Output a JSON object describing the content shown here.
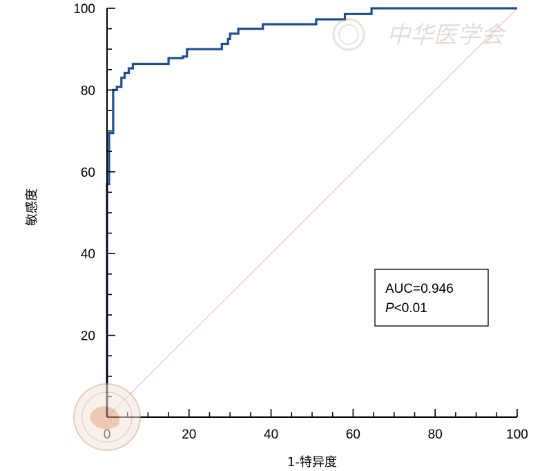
{
  "chart_data": {
    "type": "line",
    "xlabel": "1-特异度",
    "ylabel": "敏感度",
    "xlim": [
      0,
      100
    ],
    "ylim": [
      0,
      100
    ],
    "x_ticks": [
      "0",
      "20",
      "40",
      "60",
      "80",
      "100"
    ],
    "y_ticks": [
      "20",
      "40",
      "60",
      "80",
      "100"
    ],
    "series": [
      {
        "color": "#1f4e8c",
        "x": [
          0,
          0,
          0.5,
          0.5,
          1.5,
          1.5,
          2.4,
          2.4,
          3.5,
          3.5,
          4.3,
          4.3,
          5.3,
          5.3,
          6.3,
          6.3,
          7.5,
          7.5,
          15,
          15,
          18.5,
          18.5,
          19.5,
          19.5,
          28,
          28,
          29.5,
          29.5,
          30,
          30,
          32,
          32,
          38,
          38,
          51,
          51,
          57.5,
          57.5,
          58,
          58,
          64.5,
          64.5,
          100
        ],
        "y": [
          0,
          57,
          57,
          69.5,
          69.5,
          80,
          80,
          80.8,
          80.8,
          83,
          83,
          84.2,
          84.2,
          85.3,
          85.3,
          86.4,
          86.4,
          86.4,
          86.4,
          87.8,
          87.8,
          88.2,
          88.2,
          90,
          90,
          91.3,
          91.3,
          92.5,
          92.5,
          93.8,
          93.8,
          95,
          95,
          96.1,
          96.1,
          97.3,
          97.3,
          97.3,
          97.3,
          98.6,
          98.6,
          100,
          100
        ]
      }
    ],
    "reference_line": {
      "x": [
        0,
        100
      ],
      "y": [
        0,
        100
      ],
      "color": "#e6b8a8"
    },
    "annotation": {
      "line1": "AUC=0.946",
      "line2_italic": "P",
      "line2_rest": "<0.01"
    },
    "watermark_text": "中华医学会"
  }
}
